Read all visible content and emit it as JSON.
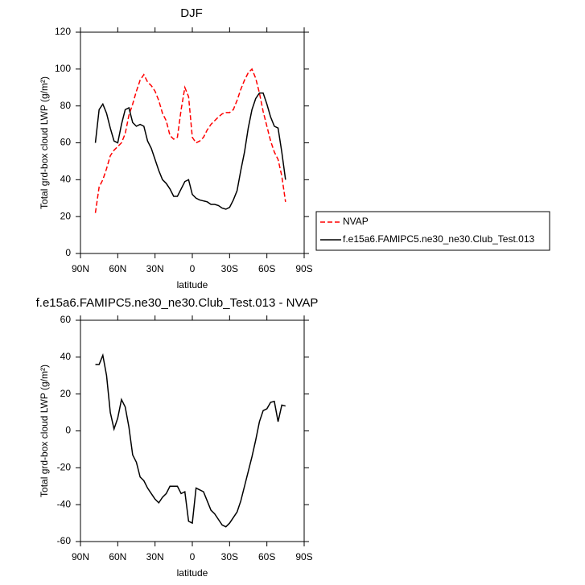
{
  "chart_data": [
    {
      "type": "line",
      "title": "DJF",
      "xlabel": "latitude",
      "ylabel": "Total grd-box cloud LWP (g/m²)",
      "x": [
        78,
        75,
        72,
        69,
        66,
        63,
        60,
        57,
        54,
        51,
        48,
        45,
        42,
        39,
        36,
        33,
        30,
        27,
        24,
        21,
        18,
        15,
        12,
        9,
        6,
        3,
        0,
        -3,
        -6,
        -9,
        -12,
        -15,
        -18,
        -21,
        -24,
        -27,
        -30,
        -33,
        -36,
        -39,
        -42,
        -45,
        -48,
        -51,
        -54,
        -57,
        -60,
        -63,
        -66,
        -69,
        -72,
        -75
      ],
      "xlim": [
        90,
        -90
      ],
      "xticks": [
        {
          "value": 90,
          "label": "90N"
        },
        {
          "value": 60,
          "label": "60N"
        },
        {
          "value": 30,
          "label": "30N"
        },
        0,
        {
          "value": -30,
          "label": "30S"
        },
        {
          "value": -60,
          "label": "60S"
        },
        {
          "value": -90,
          "label": "90S"
        }
      ],
      "ylim": [
        0,
        120
      ],
      "yticks": [
        0,
        20,
        40,
        60,
        80,
        100,
        120
      ],
      "legend": "right",
      "series": [
        {
          "name": "NVAP",
          "color": "#ff0000",
          "linestyle": "dashed",
          "values": [
            22,
            36,
            40,
            46,
            53,
            56,
            58,
            60,
            65,
            75,
            81,
            88,
            94,
            97,
            93,
            91,
            88,
            83,
            76,
            72,
            64,
            62,
            63,
            78,
            90,
            85,
            63,
            60,
            61,
            63,
            67,
            70,
            72,
            74,
            75.7,
            76.4,
            76.4,
            78,
            83,
            89,
            94,
            98,
            100,
            95,
            87,
            77,
            69,
            61,
            55,
            51,
            42,
            28
          ]
        },
        {
          "name": "f.e15a6.FAMIPC5.ne30_ne30.Club_Test.013",
          "color": "#000000",
          "linestyle": "solid",
          "values": [
            60,
            78,
            81,
            76,
            68,
            61,
            60,
            70,
            78,
            79,
            71,
            69,
            70,
            69,
            61,
            57,
            51,
            45,
            40,
            38,
            35,
            31,
            31,
            35,
            39,
            40,
            32,
            30,
            29,
            28.5,
            28,
            26.6,
            26.6,
            26,
            24.6,
            24,
            25,
            29,
            34,
            45,
            55,
            68,
            78,
            84,
            87,
            87,
            81,
            74,
            69,
            68,
            55,
            40
          ]
        }
      ]
    },
    {
      "type": "line",
      "title": "f.e15a6.FAMIPC5.ne30_ne30.Club_Test.013 - NVAP",
      "xlabel": "latitude",
      "ylabel": "Total grd-box cloud LWP (g/m²)",
      "x": [
        78,
        75,
        72,
        69,
        66,
        63,
        60,
        57,
        54,
        51,
        48,
        45,
        42,
        39,
        36,
        33,
        30,
        27,
        24,
        21,
        18,
        15,
        12,
        9,
        6,
        3,
        0,
        -3,
        -6,
        -9,
        -12,
        -15,
        -18,
        -21,
        -24,
        -27,
        -30,
        -33,
        -36,
        -39,
        -42,
        -45,
        -48,
        -51,
        -54,
        -57,
        -60,
        -63,
        -66,
        -69,
        -72,
        -75
      ],
      "xlim": [
        90,
        -90
      ],
      "xticks": [
        {
          "value": 90,
          "label": "90N"
        },
        {
          "value": 60,
          "label": "60N"
        },
        {
          "value": 30,
          "label": "30N"
        },
        0,
        {
          "value": -30,
          "label": "30S"
        },
        {
          "value": -60,
          "label": "60S"
        },
        {
          "value": -90,
          "label": "90S"
        }
      ],
      "ylim": [
        -60,
        60
      ],
      "yticks": [
        -60,
        -40,
        -20,
        0,
        20,
        40,
        60
      ],
      "series": [
        {
          "color": "#000000",
          "linestyle": "solid",
          "values": [
            36,
            36,
            41,
            30,
            10,
            1,
            7,
            17,
            13,
            2,
            -13,
            -17,
            -25,
            -27,
            -31,
            -34,
            -37,
            -39,
            -36,
            -34,
            -30,
            -30,
            -30,
            -34,
            -33,
            -49,
            -50,
            -31,
            -32,
            -33,
            -38,
            -43,
            -45,
            -48,
            -51,
            -52,
            -50,
            -47,
            -44,
            -38,
            -30,
            -22,
            -14,
            -5,
            5,
            11,
            12,
            15.5,
            16,
            5,
            14,
            13.5
          ]
        }
      ]
    }
  ]
}
